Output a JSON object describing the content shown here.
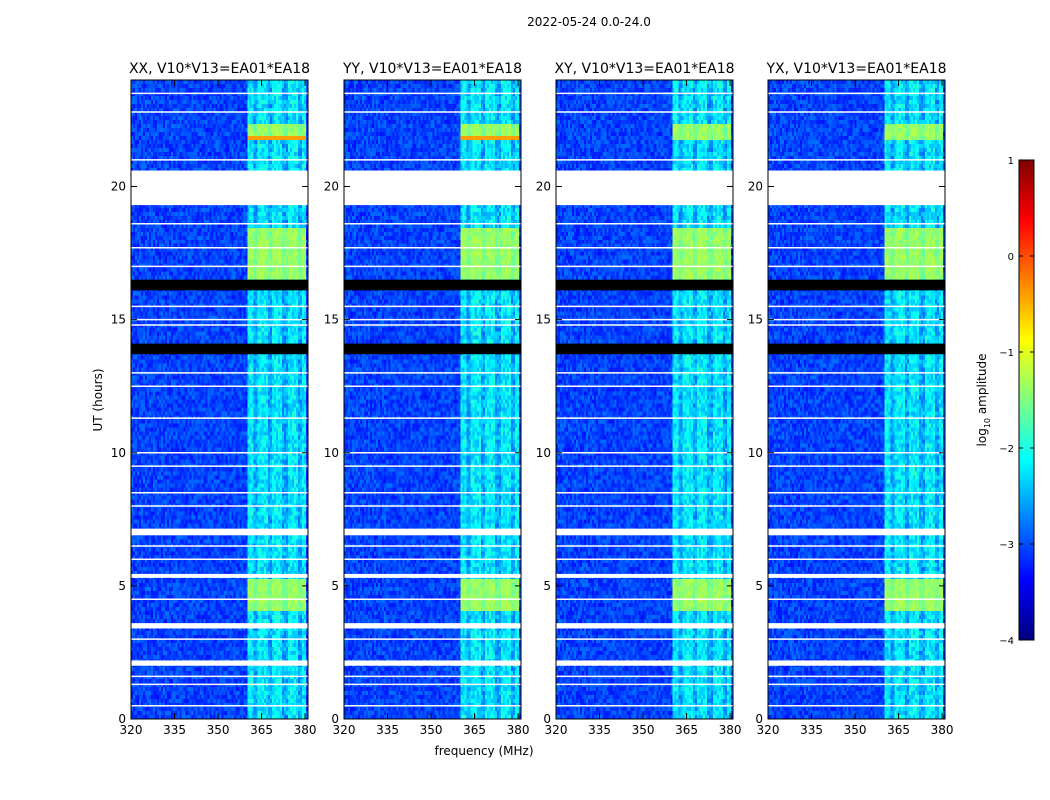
{
  "suptitle": "2022-05-24 0.0-24.0",
  "chart_data": {
    "type": "heatmap",
    "panels": [
      {
        "title": "XX, V10*V13=EA01*EA18",
        "pol": "XX"
      },
      {
        "title": "YY, V10*V13=EA01*EA18",
        "pol": "YY"
      },
      {
        "title": "XY, V10*V13=EA01*EA18",
        "pol": "XY"
      },
      {
        "title": "YX, V10*V13=EA01*EA18",
        "pol": "YX"
      }
    ],
    "xlabel": "frequency (MHz)",
    "ylabel": "UT (hours)",
    "xlim": [
      320,
      381
    ],
    "ylim": [
      0,
      24
    ],
    "xticks": [
      320,
      335,
      350,
      365,
      380
    ],
    "yticks": [
      0,
      5,
      10,
      15,
      20
    ],
    "colorbar": {
      "label_prefix": "log",
      "label_sub": "10",
      "label_suffix": " amplitude",
      "range": [
        -4,
        1
      ],
      "ticks": [
        -4,
        -3,
        -2,
        -1,
        0,
        1
      ],
      "tick_labels": [
        "−4",
        "−3",
        "−2",
        "−1",
        "0",
        "1"
      ],
      "colormap": [
        "#00007f",
        "#0000ff",
        "#007fff",
        "#00ffff",
        "#7fff7f",
        "#ffff00",
        "#ff7f00",
        "#ff0000",
        "#7f0000"
      ]
    },
    "flagged_time_ranges_hours": [
      [
        19.3,
        20.6
      ],
      [
        3.4,
        3.6
      ],
      [
        2.0,
        2.2
      ],
      [
        6.9,
        7.15
      ],
      [
        5.3,
        5.45
      ]
    ],
    "bright_channel_block_mhz": [
      360.5,
      380.5
    ],
    "bright_time_ranges_hours": [
      [
        16.5,
        18.4
      ],
      [
        4.1,
        5.2
      ],
      [
        21.7,
        22.3
      ]
    ]
  }
}
